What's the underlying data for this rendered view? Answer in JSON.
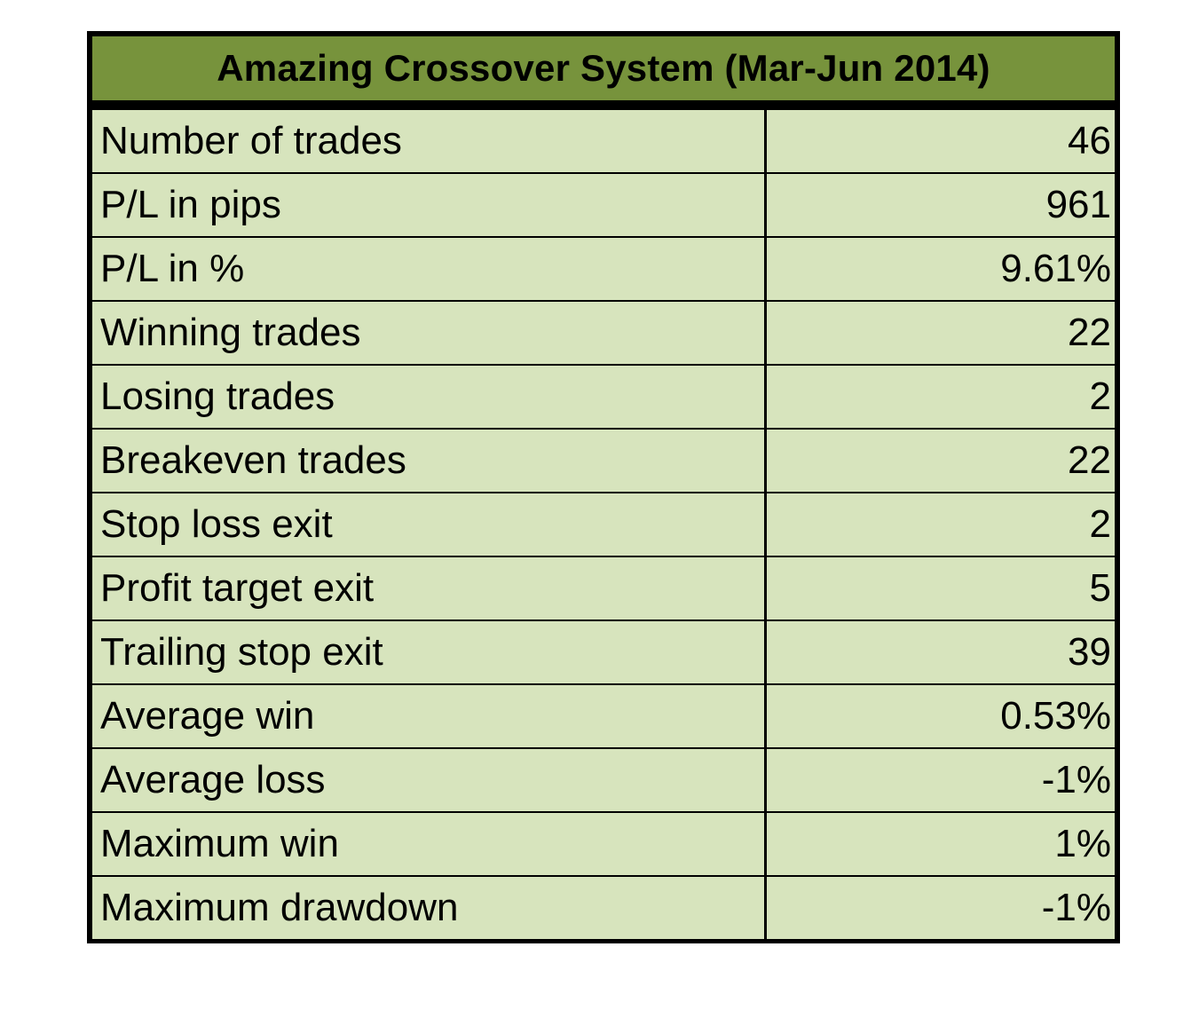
{
  "table": {
    "title": "Amazing Crossover System (Mar-Jun 2014)",
    "colors": {
      "header_bg": "#77933c",
      "cell_bg": "#d7e4bd",
      "border": "#000000"
    },
    "rows": [
      {
        "label": "Number of trades",
        "value": "46"
      },
      {
        "label": "P/L in pips",
        "value": "961"
      },
      {
        "label": "P/L in %",
        "value": "9.61%"
      },
      {
        "label": "Winning trades",
        "value": "22"
      },
      {
        "label": "Losing trades",
        "value": "2"
      },
      {
        "label": "Breakeven trades",
        "value": "22"
      },
      {
        "label": "Stop loss exit",
        "value": "2"
      },
      {
        "label": "Profit target exit",
        "value": "5"
      },
      {
        "label": "Trailing stop exit",
        "value": "39"
      },
      {
        "label": "Average win",
        "value": "0.53%"
      },
      {
        "label": "Average loss",
        "value": "-1%"
      },
      {
        "label": "Maximum win",
        "value": "1%"
      },
      {
        "label": "Maximum drawdown",
        "value": "-1%"
      }
    ]
  }
}
